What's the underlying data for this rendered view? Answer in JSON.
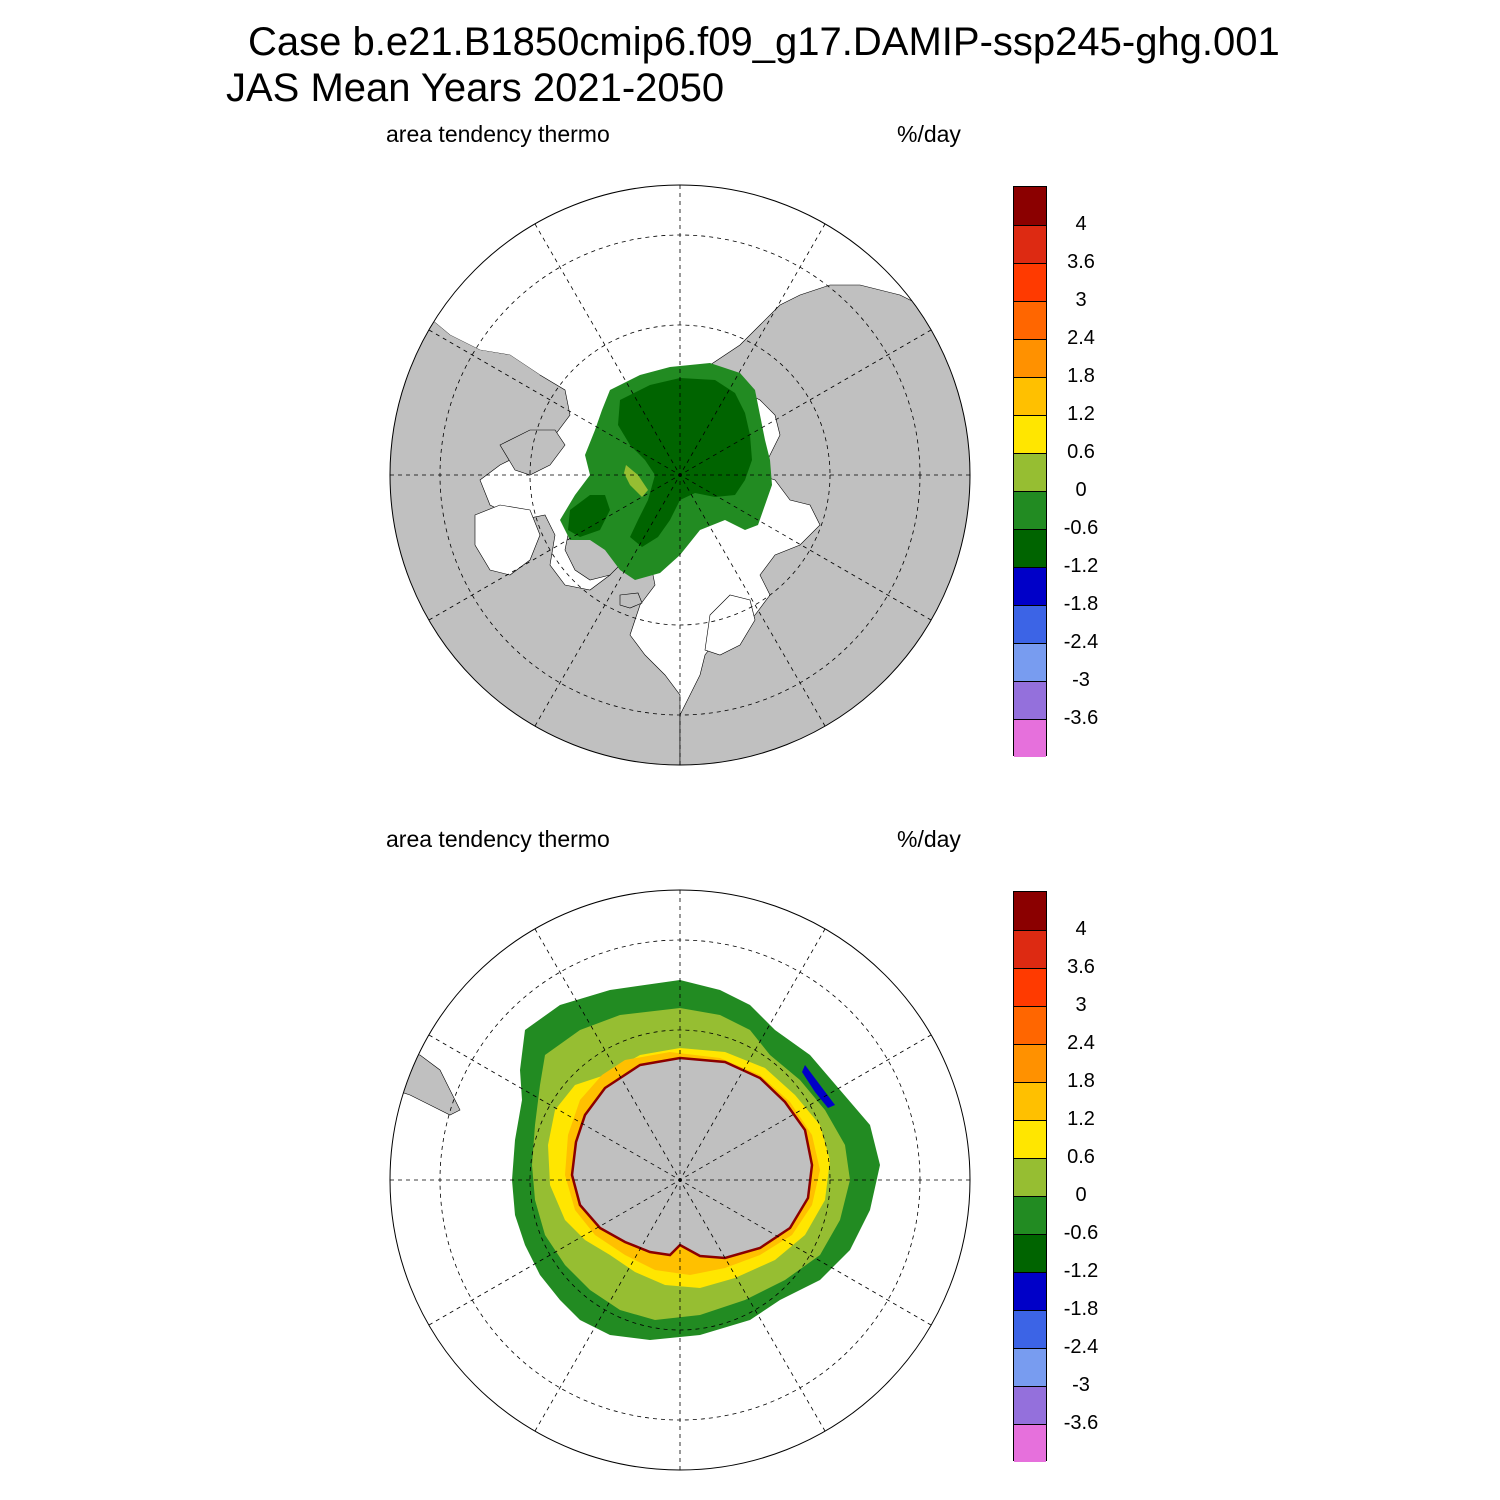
{
  "title": {
    "line1": "Case b.e21.B1850cmip6.f09_g17.DAMIP-ssp245-ghg.001",
    "line2": "JAS Mean   Years 2021-2050"
  },
  "panels": [
    {
      "id": "north",
      "hemisphere": "Northern Hemisphere polar stereographic",
      "left_label": "area tendency thermo",
      "right_label": "%/day"
    },
    {
      "id": "south",
      "hemisphere": "Southern Hemisphere polar stereographic",
      "left_label": "area tendency thermo",
      "right_label": "%/day"
    }
  ],
  "colorbar": {
    "labels": [
      "4",
      "3.6",
      "3",
      "2.4",
      "1.8",
      "1.2",
      "0.6",
      "0",
      "-0.6",
      "-1.2",
      "-1.8",
      "-2.4",
      "-3",
      "-3.6"
    ],
    "colors": [
      "#8b0000",
      "#dd2a12",
      "#ff3a00",
      "#ff6600",
      "#ff9100",
      "#ffc000",
      "#ffe600",
      "#96be32",
      "#228b22",
      "#006400",
      "#0000c8",
      "#3c64e6",
      "#789cf0",
      "#9470dc",
      "#e670dc"
    ]
  },
  "colors": {
    "land": "#c0c0c0",
    "ocean_no_ice": "#ffffff",
    "grid": "#000000"
  }
}
